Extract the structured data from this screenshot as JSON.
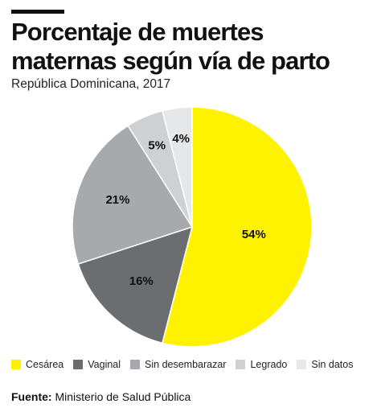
{
  "header": {
    "title_line_1": "Porcentaje de muertes",
    "title_line_2": "maternas según vía de parto",
    "subtitle": "República Dominicana, 2017"
  },
  "footer": {
    "source_label": "Fuente:",
    "source_text": "Ministerio de Salud Pública"
  },
  "chart_data": {
    "type": "pie",
    "title": "Porcentaje de muertes maternas según vía de parto",
    "subtitle": "República Dominicana, 2017",
    "start_angle_deg": 0,
    "direction": "clockwise",
    "legend_position": "bottom",
    "categories": [
      "Cesárea",
      "Vaginal",
      "Sin desembarazar",
      "Legrado",
      "Sin datos"
    ],
    "values": [
      54,
      16,
      21,
      5,
      4
    ],
    "labels": [
      "54%",
      "16%",
      "21%",
      "5%",
      "4%"
    ],
    "colors": [
      "#fff200",
      "#6b6d70",
      "#a7a9ac",
      "#cfd0d2",
      "#e6e7e8"
    ]
  }
}
